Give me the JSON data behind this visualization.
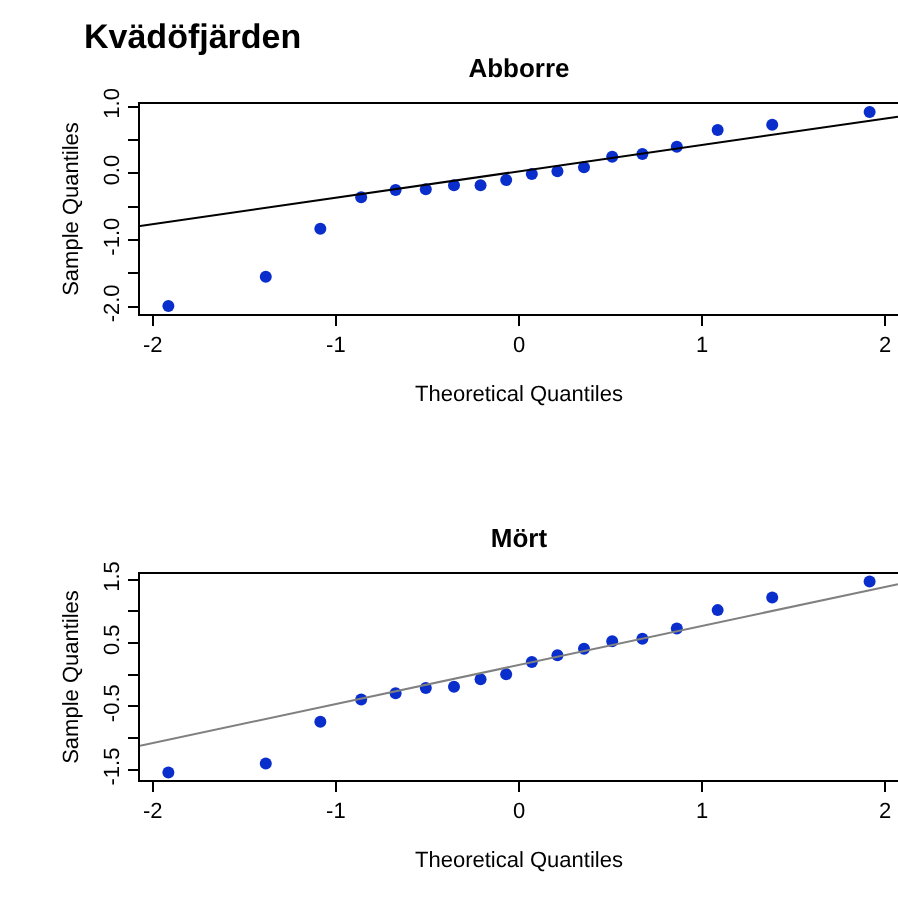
{
  "chart_data": [
    {
      "type": "scatter",
      "title": "Abborre",
      "xlabel": "Theoretical Quantiles",
      "ylabel": "Sample Quantiles",
      "annotations": [
        "Kvädöfjärden"
      ],
      "grid": false,
      "xlim": [
        -2.07,
        2.07
      ],
      "xticks": [
        -2,
        -1,
        0,
        1,
        2
      ],
      "ylim": [
        -2.11,
        1.04
      ],
      "yticks": [
        {
          "value": -2,
          "label": "-2.0"
        },
        {
          "value": -1.5,
          "label": null
        },
        {
          "value": -1,
          "label": "-1.0"
        },
        {
          "value": -0.5,
          "label": null
        },
        {
          "value": 0,
          "label": "0.0"
        },
        {
          "value": 0.5,
          "label": null
        },
        {
          "value": 1,
          "label": "1.0"
        }
      ],
      "series": [
        {
          "marker": "circle",
          "color": "#0a2ecc",
          "x": [
            -1.915,
            -1.383,
            -1.085,
            -0.862,
            -0.674,
            -0.509,
            -0.355,
            -0.21,
            -0.07,
            0.07,
            0.21,
            0.355,
            0.509,
            0.674,
            0.862,
            1.085,
            1.383,
            1.915
          ],
          "values": [
            -1.99,
            -1.55,
            -0.83,
            -0.36,
            -0.25,
            -0.24,
            -0.18,
            -0.18,
            -0.1,
            -0.01,
            0.03,
            0.09,
            0.25,
            0.29,
            0.4,
            0.65,
            0.73,
            0.92
          ]
        },
        {
          "type": "line",
          "color": "#000000",
          "x": [
            -2.07,
            2.07
          ],
          "values": [
            -0.79,
            0.85
          ]
        }
      ]
    },
    {
      "type": "scatter",
      "title": "Mört",
      "xlabel": "Theoretical Quantiles",
      "ylabel": "Sample Quantiles",
      "grid": false,
      "xlim": [
        -2.07,
        2.07
      ],
      "xticks": [
        -2,
        -1,
        0,
        1,
        2
      ],
      "ylim": [
        -1.66,
        1.59
      ],
      "yticks": [
        -1.5,
        {
          "value": -1,
          "label": null
        },
        -0.5,
        {
          "value": 0,
          "label": null
        },
        0.5,
        {
          "value": 1,
          "label": null
        },
        1.5
      ],
      "series": [
        {
          "marker": "circle",
          "color": "#0a2ecc",
          "x": [
            -1.915,
            -1.383,
            -1.085,
            -0.862,
            -0.674,
            -0.509,
            -0.355,
            -0.21,
            -0.07,
            0.07,
            0.21,
            0.355,
            0.509,
            0.674,
            0.862,
            1.085,
            1.383,
            1.915
          ],
          "values": [
            -1.54,
            -1.4,
            -0.74,
            -0.39,
            -0.29,
            -0.21,
            -0.19,
            -0.07,
            0.01,
            0.2,
            0.31,
            0.41,
            0.53,
            0.57,
            0.73,
            1.02,
            1.22,
            1.47
          ]
        },
        {
          "type": "line",
          "color": "#808080",
          "x": [
            -2.07,
            2.07
          ],
          "values": [
            -1.12,
            1.43
          ]
        }
      ]
    }
  ]
}
